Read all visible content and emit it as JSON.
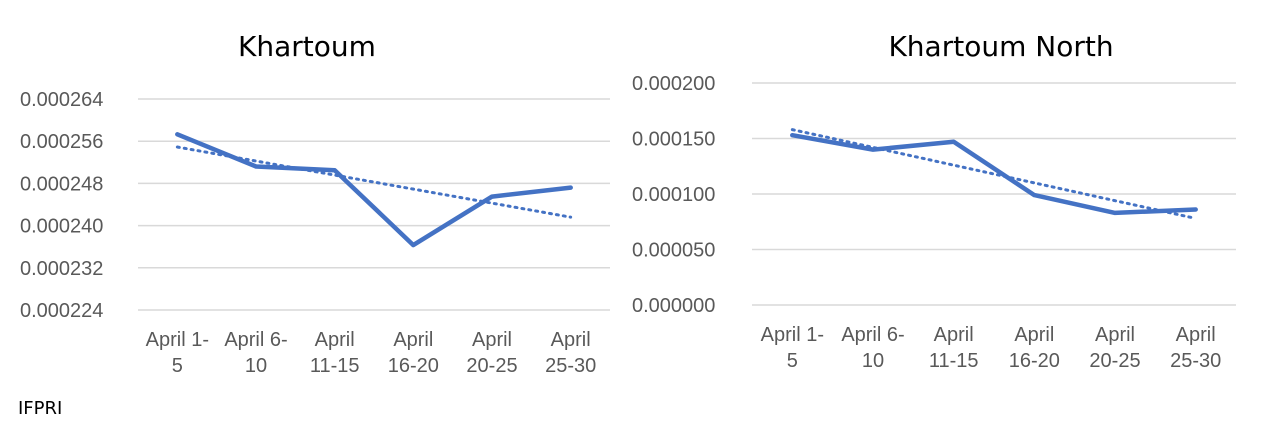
{
  "chart_data": [
    {
      "type": "line",
      "title": "Khartoum",
      "categories": [
        [
          "April 1-",
          "5"
        ],
        [
          "April 6-",
          "10"
        ],
        [
          "April",
          "11-15"
        ],
        [
          "April",
          "16-20"
        ],
        [
          "April",
          "20-25"
        ],
        [
          "April",
          "25-30"
        ]
      ],
      "y_ticks": [
        "0.000224",
        "0.000232",
        "0.000240",
        "0.000248",
        "0.000256",
        "0.000264"
      ],
      "ylim": [
        0.000224,
        0.000264
      ],
      "series": [
        {
          "values": [
            0.0002573,
            0.0002512,
            0.0002505,
            0.0002363,
            0.0002455,
            0.0002472
          ]
        }
      ],
      "trendline": {
        "style": "dotted",
        "start": 0.0002549,
        "end": 0.0002416
      },
      "grid": true,
      "line_color": "#4472C4"
    },
    {
      "type": "line",
      "title": "Khartoum North",
      "categories": [
        [
          "April 1-",
          "5"
        ],
        [
          "April 6-",
          "10"
        ],
        [
          "April",
          "11-15"
        ],
        [
          "April",
          "16-20"
        ],
        [
          "April",
          "20-25"
        ],
        [
          "April",
          "25-30"
        ]
      ],
      "y_ticks": [
        "0.000000",
        "0.000050",
        "0.000100",
        "0.000150",
        "0.000200"
      ],
      "ylim": [
        0.0,
        0.0002
      ],
      "series": [
        {
          "values": [
            0.000153,
            0.00014,
            0.000147,
            9.9e-05,
            8.3e-05,
            8.6e-05
          ]
        }
      ],
      "trendline": {
        "style": "dotted",
        "start": 0.000158,
        "end": 7.8e-05
      },
      "grid": true,
      "line_color": "#4472C4"
    }
  ],
  "source": "IFPRI"
}
